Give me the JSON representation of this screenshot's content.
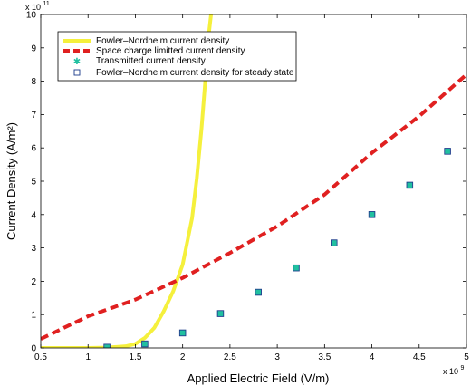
{
  "chart_data": {
    "type": "line",
    "xlabel": "Applied Electric Field (V/m)",
    "ylabel": "Current Density (A/m²)",
    "x_multiplier": "x 10",
    "x_exponent": "9",
    "y_multiplier": "x 10",
    "y_exponent": "11",
    "xlim": [
      0.5,
      5
    ],
    "ylim": [
      0,
      10
    ],
    "x_ticks": [
      0.5,
      1,
      1.5,
      2,
      2.5,
      3,
      3.5,
      4,
      4.5,
      5
    ],
    "x_tick_labels": [
      "0.5",
      "1",
      "1.5",
      "2",
      "2.5",
      "3",
      "3.5",
      "4",
      "4.5",
      "5"
    ],
    "y_ticks": [
      0,
      1,
      2,
      3,
      4,
      5,
      6,
      7,
      8,
      9,
      10
    ],
    "y_tick_labels": [
      "0",
      "1",
      "2",
      "3",
      "4",
      "5",
      "6",
      "7",
      "8",
      "9",
      "10"
    ],
    "legend_position": "top-left",
    "series": [
      {
        "name": "Fowler–Nordheim current density",
        "style": "line",
        "color": "#f5f03c",
        "x": [
          0.5,
          1.0,
          1.2,
          1.4,
          1.5,
          1.6,
          1.7,
          1.8,
          1.9,
          2.0,
          2.1,
          2.15,
          2.2,
          2.25,
          2.28,
          2.3
        ],
        "y": [
          0,
          0,
          0.01,
          0.05,
          0.12,
          0.3,
          0.6,
          1.1,
          1.7,
          2.5,
          3.9,
          5.1,
          6.6,
          8.4,
          9.5,
          10.0
        ]
      },
      {
        "name": "Space charge limitted current density",
        "style": "dashed",
        "color": "#e02020",
        "x": [
          0.5,
          1.0,
          1.5,
          2.0,
          2.5,
          3.0,
          3.5,
          4.0,
          4.5,
          5.0
        ],
        "y": [
          0.27,
          0.95,
          1.45,
          2.1,
          2.85,
          3.65,
          4.6,
          5.85,
          6.95,
          8.2
        ]
      },
      {
        "name": "Transmitted current density",
        "style": "marker-star",
        "color": "#20c0a0",
        "x": [
          1.2,
          1.6,
          2.0,
          2.4,
          2.8,
          3.2,
          3.6,
          4.0,
          4.4,
          4.8
        ],
        "y": [
          0.02,
          0.12,
          0.45,
          1.03,
          1.67,
          2.4,
          3.15,
          4.0,
          4.88,
          5.9
        ]
      },
      {
        "name": "Fowler–Nordheim current density for steady state",
        "style": "marker-square",
        "color": "#1a3a8a",
        "x": [
          1.2,
          1.6,
          2.0,
          2.4,
          2.8,
          3.2,
          3.6,
          4.0,
          4.4,
          4.8
        ],
        "y": [
          0.02,
          0.12,
          0.45,
          1.03,
          1.67,
          2.4,
          3.15,
          4.0,
          4.88,
          5.9
        ]
      }
    ]
  }
}
